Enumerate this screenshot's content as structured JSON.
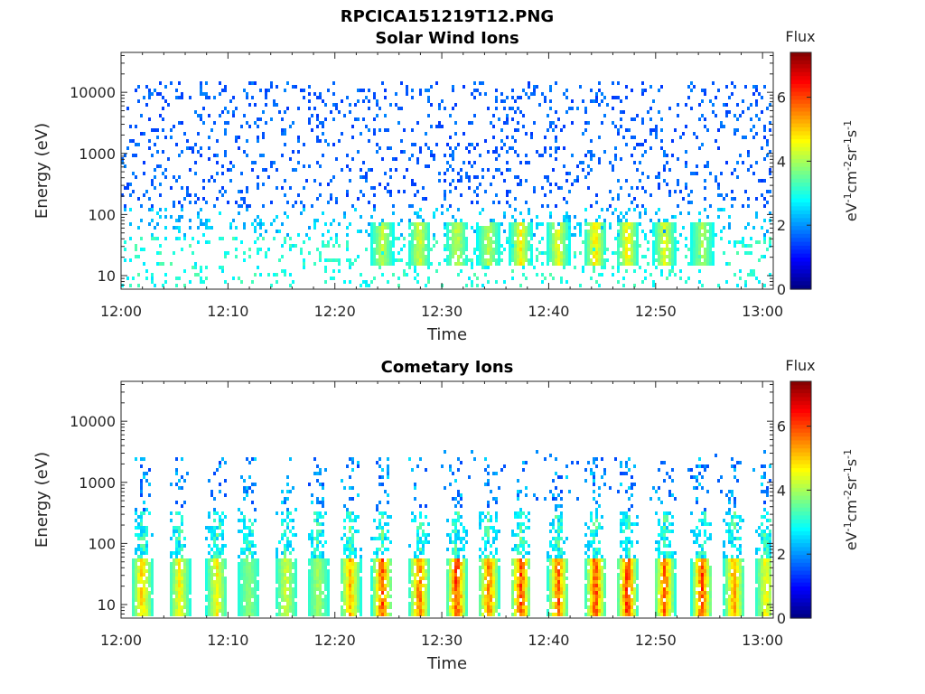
{
  "figure_title": "RPCICA151219T12.PNG",
  "chart_data": [
    {
      "type": "heatmap",
      "title": "Solar Wind Ions",
      "xlabel": "Time",
      "ylabel": "Energy (eV)",
      "x_ticks": [
        "12:00",
        "12:10",
        "12:20",
        "12:30",
        "12:40",
        "12:50",
        "13:00"
      ],
      "x_range_minutes": [
        0,
        61
      ],
      "y_scale": "log",
      "y_ticks": [
        10,
        100,
        1000,
        10000
      ],
      "y_tick_labels": [
        "10",
        "100",
        "1000",
        "10000"
      ],
      "ylim": [
        6,
        45000
      ],
      "colorbar": {
        "title": "Flux",
        "label": "eV-1cm-2sr-1s-1",
        "ticks": [
          "0",
          "2",
          "4",
          "6"
        ],
        "range": [
          0,
          7.4
        ]
      },
      "colormap": "jet",
      "bursts": [
        {
          "t": 24.5,
          "flux": 4.5
        },
        {
          "t": 28.0,
          "flux": 4.6
        },
        {
          "t": 31.5,
          "flux": 4.5
        },
        {
          "t": 34.5,
          "flux": 4.4
        },
        {
          "t": 37.5,
          "flux": 5.0
        },
        {
          "t": 41.0,
          "flux": 4.8
        },
        {
          "t": 44.5,
          "flux": 5.2
        },
        {
          "t": 47.5,
          "flux": 5.0
        },
        {
          "t": 51.0,
          "flux": 4.8
        },
        {
          "t": 54.5,
          "flux": 4.3
        }
      ]
    },
    {
      "type": "heatmap",
      "title": "Cometary Ions",
      "xlabel": "Time",
      "ylabel": "Energy (eV)",
      "x_ticks": [
        "12:00",
        "12:10",
        "12:20",
        "12:30",
        "12:40",
        "12:50",
        "13:00"
      ],
      "x_range_minutes": [
        0,
        61
      ],
      "y_scale": "log",
      "y_ticks": [
        10,
        100,
        1000,
        10000
      ],
      "y_tick_labels": [
        "10",
        "100",
        "1000",
        "10000"
      ],
      "ylim": [
        6,
        45000
      ],
      "colorbar": {
        "title": "Flux",
        "label": "eV-1cm-2sr-1s-1",
        "ticks": [
          "0",
          "2",
          "4",
          "6"
        ],
        "range": [
          0,
          7.4
        ]
      },
      "colormap": "jet",
      "bursts": [
        {
          "t": 2.0,
          "flux": 5.4
        },
        {
          "t": 5.5,
          "flux": 5.0
        },
        {
          "t": 9.0,
          "flux": 5.0
        },
        {
          "t": 12.0,
          "flux": 4.0
        },
        {
          "t": 15.5,
          "flux": 4.6
        },
        {
          "t": 18.5,
          "flux": 4.2
        },
        {
          "t": 21.5,
          "flux": 5.6
        },
        {
          "t": 24.5,
          "flux": 6.5
        },
        {
          "t": 28.0,
          "flux": 6.2
        },
        {
          "t": 31.5,
          "flux": 6.8
        },
        {
          "t": 34.5,
          "flux": 6.2
        },
        {
          "t": 37.5,
          "flux": 6.6
        },
        {
          "t": 41.0,
          "flux": 6.3
        },
        {
          "t": 44.5,
          "flux": 6.6
        },
        {
          "t": 47.5,
          "flux": 6.8
        },
        {
          "t": 51.0,
          "flux": 6.3
        },
        {
          "t": 54.5,
          "flux": 6.5
        },
        {
          "t": 57.5,
          "flux": 5.8
        },
        {
          "t": 60.5,
          "flux": 5.0
        }
      ]
    }
  ]
}
